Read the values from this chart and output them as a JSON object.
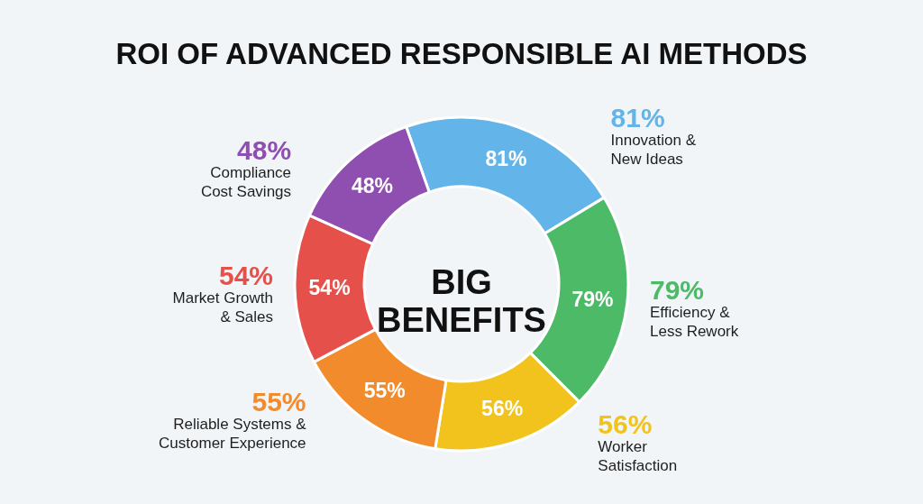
{
  "chart_data": {
    "type": "donut",
    "title": "ROI OF ADVANCED RESPONSIBLE AI METHODS",
    "categories": [
      "Innovation &\nNew Ideas",
      "Efficiency &\nLess Rework",
      "Worker\nSatisfaction",
      "Reliable Systems &\nCustomer Experience",
      "Market Growth\n& Sales",
      "Compliance\nCost Savings"
    ],
    "values": [
      81,
      79,
      56,
      55,
      54,
      48
    ],
    "colors": [
      "#63b4e8",
      "#4dba68",
      "#f1c31c",
      "#f28b2b",
      "#e6504a",
      "#8f4fb0"
    ],
    "value_labels": [
      "81%",
      "79%",
      "56%",
      "55%",
      "54%",
      "48%"
    ],
    "annotations": [
      "BIG\nBENEFITS"
    ]
  }
}
